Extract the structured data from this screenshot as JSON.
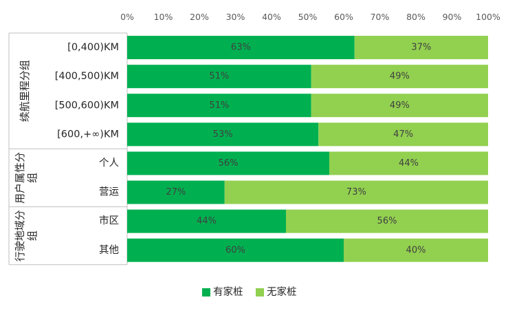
{
  "chart_data": {
    "type": "bar",
    "orientation": "horizontal",
    "stacked": true,
    "percent": true,
    "xlim": [
      0,
      100
    ],
    "x_ticks": [
      "0%",
      "10%",
      "20%",
      "30%",
      "40%",
      "50%",
      "60%",
      "70%",
      "80%",
      "90%",
      "100%"
    ],
    "x_axis_position": "top",
    "grid": false,
    "legend_position": "bottom",
    "groups": [
      {
        "label": "续航里程分组",
        "categories": [
          "[0,400)KM",
          "[400,500)KM",
          "[500,600)KM",
          "[600,+∞)KM"
        ]
      },
      {
        "label": "用户属性分组",
        "categories": [
          "个人",
          "营运"
        ]
      },
      {
        "label": "行驶地域分组",
        "categories": [
          "市区",
          "其他"
        ]
      }
    ],
    "categories": [
      "[0,400)KM",
      "[400,500)KM",
      "[500,600)KM",
      "[600,+∞)KM",
      "个人",
      "营运",
      "市区",
      "其他"
    ],
    "series": [
      {
        "name": "有家桩",
        "color": "#00b050",
        "values": [
          63,
          51,
          51,
          53,
          56,
          27,
          44,
          60
        ],
        "labels": [
          "63%",
          "51%",
          "51%",
          "53%",
          "56%",
          "27%",
          "44%",
          "60%"
        ]
      },
      {
        "name": "无家桩",
        "color": "#92d050",
        "values": [
          37,
          49,
          49,
          47,
          44,
          73,
          56,
          40
        ],
        "labels": [
          "37%",
          "49%",
          "49%",
          "47%",
          "44%",
          "73%",
          "56%",
          "40%"
        ]
      }
    ]
  }
}
